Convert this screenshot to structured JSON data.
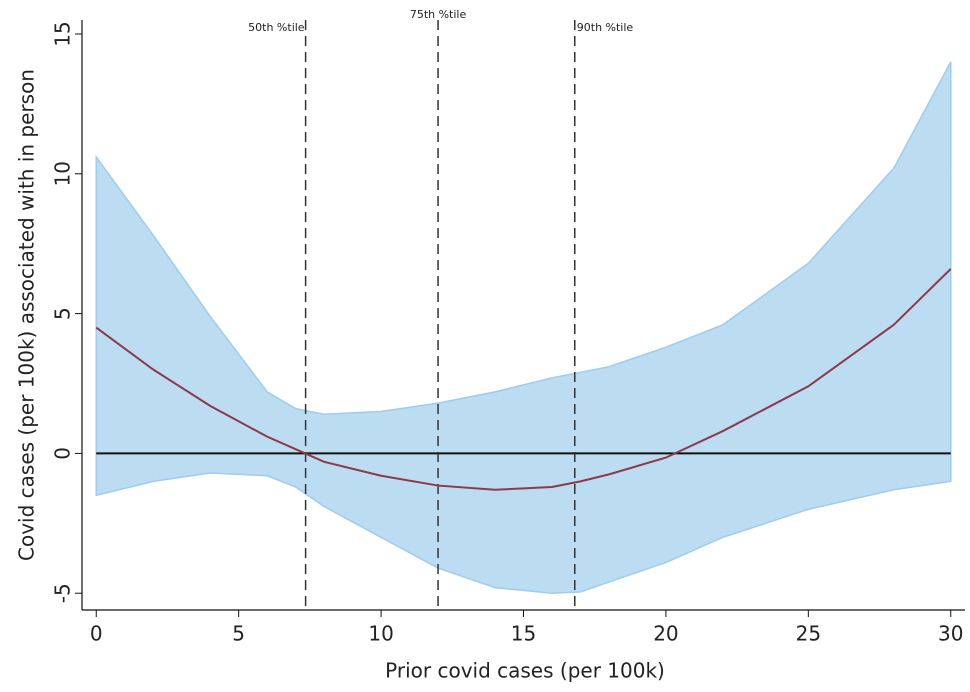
{
  "chart_data": {
    "type": "band-line",
    "xlabel": "Prior covid cases (per 100k)",
    "ylabel": "Covid cases (per 100k) associated with in person",
    "x": [
      0,
      2,
      4,
      6,
      7,
      8,
      10,
      12,
      14,
      16,
      17,
      18,
      20,
      22,
      25,
      28,
      30
    ],
    "line": {
      "color": "#8b3a4a",
      "values": [
        4.5,
        3.0,
        1.7,
        0.6,
        0.15,
        -0.3,
        -0.8,
        -1.15,
        -1.3,
        -1.2,
        -1.0,
        -0.75,
        -0.15,
        0.8,
        2.4,
        4.6,
        6.6
      ]
    },
    "band": {
      "color": "#bcdcf2",
      "upper": [
        10.6,
        7.8,
        4.9,
        2.2,
        1.6,
        1.4,
        1.5,
        1.8,
        2.2,
        2.7,
        2.9,
        3.1,
        3.8,
        4.6,
        6.8,
        10.2,
        14.0
      ],
      "lower": [
        -1.5,
        -1.0,
        -0.7,
        -0.8,
        -1.2,
        -1.9,
        -3.0,
        -4.1,
        -4.8,
        -5.0,
        -4.95,
        -4.6,
        -3.9,
        -3.0,
        -2.0,
        -1.3,
        -1.0
      ]
    },
    "hline": 0,
    "reference_lines": [
      {
        "value": 7.35,
        "label": "50th %tile"
      },
      {
        "value": 12,
        "label": "75th %tile"
      },
      {
        "value": 16.8,
        "label": "90th %tile"
      }
    ],
    "xlim": [
      -0.5,
      30.5
    ],
    "xticks": [
      0,
      5,
      10,
      15,
      20,
      25,
      30
    ],
    "ylim": [
      -5.6,
      15.5
    ],
    "yticks": [
      -5,
      0,
      5,
      10,
      15
    ]
  }
}
